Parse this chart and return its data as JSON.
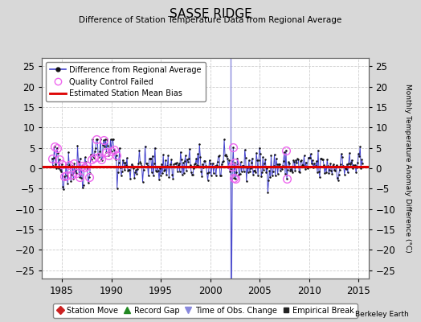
{
  "title": "SASSE RIDGE",
  "subtitle": "Difference of Station Temperature Data from Regional Average",
  "ylabel_right": "Monthly Temperature Anomaly Difference (°C)",
  "xlim": [
    1983.0,
    2016.0
  ],
  "ylim": [
    -27,
    27
  ],
  "yticks": [
    -25,
    -20,
    -15,
    -10,
    -5,
    0,
    5,
    10,
    15,
    20,
    25
  ],
  "xticks": [
    1985,
    1990,
    1995,
    2000,
    2005,
    2010,
    2015
  ],
  "bias_value": 0.3,
  "time_of_obs_change_year": 2002.1,
  "background_color": "#d8d8d8",
  "plot_bg_color": "#ffffff",
  "line_color": "#4444cc",
  "marker_color": "#111111",
  "bias_color": "#dd0000",
  "qc_color": "#ee66ee",
  "tobs_color": "#8888dd",
  "watermark": "Berkeley Earth",
  "legend1_items": [
    "Difference from Regional Average",
    "Quality Control Failed",
    "Estimated Station Mean Bias"
  ],
  "legend2_items": [
    "Station Move",
    "Record Gap",
    "Time of Obs. Change",
    "Empirical Break"
  ],
  "seed": 42
}
